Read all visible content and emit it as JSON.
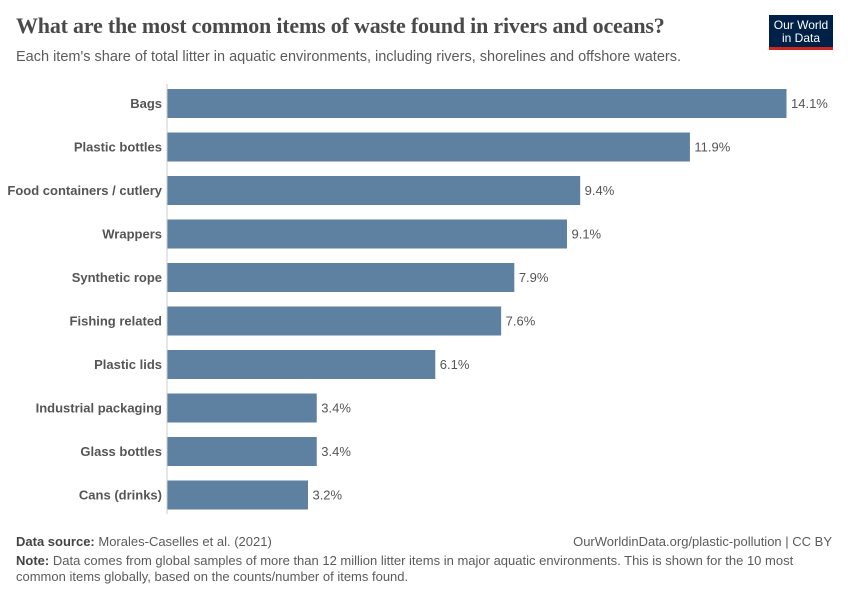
{
  "header": {
    "title": "What are the most common items of waste found in rivers and oceans?",
    "subtitle": "Each item's share of total litter in aquatic environments, including rivers, shorelines and offshore waters.",
    "logo": "Our World in Data"
  },
  "footer": {
    "source_label": "Data source:",
    "source": "Morales-Caselles et al. (2021)",
    "url": "OurWorldinData.org/plastic-pollution | CC BY",
    "note_label": "Note:",
    "note": "Data comes from global samples of more than 12 million litter items in major aquatic environments. This is shown for the 10 most common items globally, based on the counts/number of items found."
  },
  "chart_data": {
    "type": "bar",
    "orientation": "horizontal",
    "categories": [
      "Bags",
      "Plastic bottles",
      "Food containers / cutlery",
      "Wrappers",
      "Synthetic rope",
      "Fishing related",
      "Plastic lids",
      "Industrial packaging",
      "Glass bottles",
      "Cans (drinks)"
    ],
    "values": [
      14.1,
      11.9,
      9.4,
      9.1,
      7.9,
      7.6,
      6.1,
      3.4,
      3.4,
      3.2
    ],
    "unit": "%",
    "color": "#5e81a1",
    "grid": false
  }
}
